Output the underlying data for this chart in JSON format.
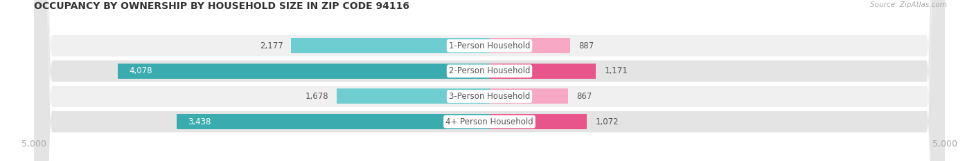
{
  "title": "OCCUPANCY BY OWNERSHIP BY HOUSEHOLD SIZE IN ZIP CODE 94116",
  "source": "Source: ZipAtlas.com",
  "categories": [
    "1-Person Household",
    "2-Person Household",
    "3-Person Household",
    "4+ Person Household"
  ],
  "owner_values": [
    2177,
    4078,
    1678,
    3438
  ],
  "renter_values": [
    887,
    1171,
    867,
    1072
  ],
  "max_val": 5000,
  "owner_color_light": "#6ecdd0",
  "owner_color_dark": "#3aacb0",
  "renter_color_light": "#f7a8c4",
  "renter_color_dark": "#e8558a",
  "row_bg_colors": [
    "#f0f0f0",
    "#e4e4e4",
    "#f0f0f0",
    "#e4e4e4"
  ],
  "label_dark": "#555555",
  "label_white": "#ffffff",
  "center_label_color": "#555555",
  "title_color": "#333333",
  "axis_label_color": "#aaaaaa",
  "figure_bg": "#ffffff",
  "font_size_title": 10,
  "font_size_labels": 8.5,
  "font_size_axis": 9,
  "font_size_legend": 9,
  "font_size_source": 7.5,
  "owner_inside_threshold": 2500,
  "renter_inside_threshold": 9999
}
